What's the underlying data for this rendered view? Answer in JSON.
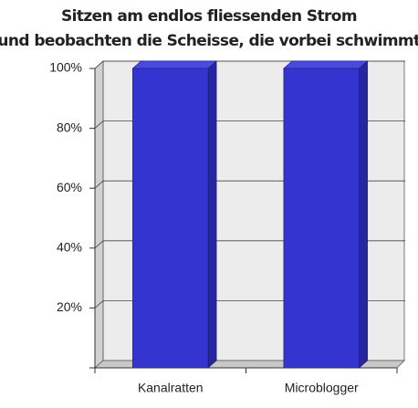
{
  "chart_data": {
    "type": "bar3d",
    "title": [
      "Sitzen am endlos fliessenden Strom",
      "und beobachten die Scheisse, die vorbei schwimmt"
    ],
    "categories": [
      "Kanalratten",
      "Microblogger"
    ],
    "values": [
      100,
      100
    ],
    "color": "#3434d0",
    "ylim": [
      0,
      100
    ],
    "yticks": [
      {
        "value": 20,
        "label": "20%"
      },
      {
        "value": 40,
        "label": "40%"
      },
      {
        "value": 60,
        "label": "60%"
      },
      {
        "value": 80,
        "label": "80%"
      },
      {
        "value": 100,
        "label": "100%"
      }
    ],
    "grid": true
  }
}
